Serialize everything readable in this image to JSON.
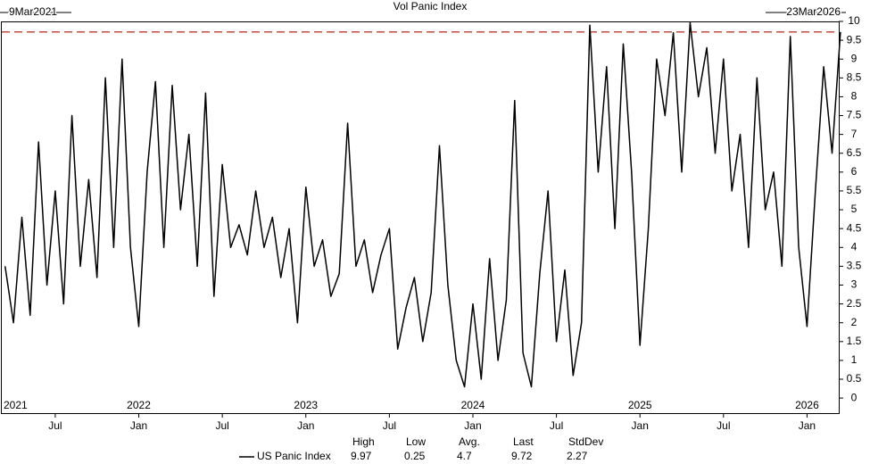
{
  "chart_data": {
    "type": "line",
    "title": "Vol Panic Index",
    "start_label": "9Mar2021",
    "end_label": "23Mar2026",
    "x": [
      2021.2,
      2021.25,
      2021.3,
      2021.35,
      2021.4,
      2021.45,
      2021.5,
      2021.55,
      2021.6,
      2021.65,
      2021.7,
      2021.75,
      2021.8,
      2021.85,
      2021.9,
      2021.95,
      2022.0,
      2022.05,
      2022.1,
      2022.15,
      2022.2,
      2022.25,
      2022.3,
      2022.35,
      2022.4,
      2022.45,
      2022.5,
      2022.55,
      2022.6,
      2022.65,
      2022.7,
      2022.75,
      2022.8,
      2022.85,
      2022.9,
      2022.95,
      2023.0,
      2023.05,
      2023.1,
      2023.15,
      2023.2,
      2023.25,
      2023.3,
      2023.35,
      2023.4,
      2023.45,
      2023.5,
      2023.55,
      2023.6,
      2023.65,
      2023.7,
      2023.75,
      2023.8,
      2023.85,
      2023.9,
      2023.95,
      2024.0,
      2024.05,
      2024.1,
      2024.15,
      2024.2,
      2024.25,
      2024.3,
      2024.35,
      2024.4,
      2024.45,
      2024.5,
      2024.55,
      2024.6,
      2024.65,
      2024.7,
      2024.75,
      2024.8,
      2024.85,
      2024.9,
      2024.95,
      2025.0,
      2025.05,
      2025.1,
      2025.15,
      2025.2,
      2025.25,
      2025.3,
      2025.35,
      2025.4,
      2025.45,
      2025.5,
      2025.55,
      2025.6,
      2025.65,
      2025.7,
      2025.75,
      2025.8,
      2025.85,
      2025.9,
      2025.95,
      2026.0,
      2026.05,
      2026.1,
      2026.15,
      2026.2
    ],
    "series": [
      {
        "name": "US Panic Index",
        "color": "#000000",
        "values": [
          3.5,
          2.0,
          4.8,
          2.2,
          6.8,
          3.0,
          5.5,
          2.5,
          7.5,
          3.5,
          5.8,
          3.2,
          8.5,
          4.0,
          9.0,
          4.0,
          1.9,
          6.0,
          8.4,
          4.0,
          8.3,
          5.0,
          7.0,
          3.5,
          8.1,
          2.7,
          6.2,
          4.0,
          4.6,
          3.8,
          5.5,
          4.0,
          4.8,
          3.2,
          4.5,
          2.0,
          5.6,
          3.5,
          4.2,
          2.7,
          3.3,
          7.3,
          3.5,
          4.2,
          2.8,
          3.8,
          4.5,
          1.3,
          2.4,
          3.2,
          1.5,
          2.8,
          6.7,
          3.0,
          1.0,
          0.3,
          2.5,
          0.5,
          3.7,
          1.0,
          2.6,
          7.9,
          1.2,
          0.3,
          3.3,
          5.5,
          1.5,
          3.4,
          0.6,
          2.0,
          9.9,
          6.0,
          8.8,
          4.5,
          9.4,
          6.0,
          1.4,
          4.5,
          9.0,
          7.5,
          9.7,
          6.0,
          9.97,
          8.0,
          9.3,
          6.5,
          9.0,
          5.5,
          7.0,
          4.0,
          8.5,
          5.0,
          6.0,
          3.5,
          9.6,
          4.0,
          1.9,
          5.5,
          8.8,
          6.5,
          9.72
        ]
      }
    ],
    "xlim": [
      2021.18,
      2026.19
    ],
    "ylim": [
      -0.4,
      10
    ],
    "xticks": [
      {
        "value": 2021.5,
        "label": "Jul"
      },
      {
        "value": 2022,
        "label": "Jan"
      },
      {
        "value": 2022.5,
        "label": "Jul"
      },
      {
        "value": 2023,
        "label": "Jan"
      },
      {
        "value": 2023.5,
        "label": "Jul"
      },
      {
        "value": 2024,
        "label": "Jan"
      },
      {
        "value": 2024.5,
        "label": "Jul"
      },
      {
        "value": 2025,
        "label": "Jan"
      },
      {
        "value": 2025.5,
        "label": "Jul"
      },
      {
        "value": 2026,
        "label": "Jan"
      }
    ],
    "year_labels": [
      2021,
      2022,
      2023,
      2024,
      2025,
      2026
    ],
    "yticks": [
      0,
      0.5,
      1,
      1.5,
      2,
      2.5,
      3,
      3.5,
      4,
      4.5,
      5,
      5.5,
      6,
      6.5,
      7,
      7.5,
      8,
      8.5,
      9,
      9.5,
      10
    ],
    "reference_color": "#c0392b",
    "stats": {
      "headers": [
        "High",
        "Low",
        "Avg.",
        "Last",
        "StdDev"
      ],
      "values": [
        9.97,
        0.25,
        4.7,
        9.72,
        2.27
      ]
    }
  }
}
